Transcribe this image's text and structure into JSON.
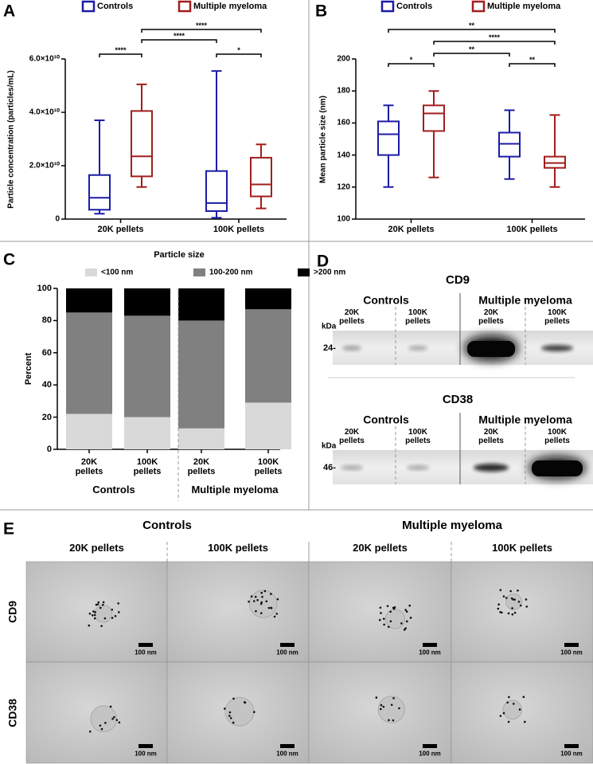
{
  "panel_labels": [
    "A",
    "B",
    "C",
    "D",
    "E"
  ],
  "chart_data": [
    {
      "type": "box",
      "ylabel": "Particle concentration (particles/mL)",
      "categories": [
        "20K pellets",
        "100K pellets"
      ],
      "series": [
        {
          "name": "Controls",
          "color": "#1c1ca6",
          "min": [
            2000000000,
            500000000
          ],
          "q1": [
            3500000000,
            3000000000
          ],
          "median": [
            8000000000,
            6000000000
          ],
          "q3": [
            16500000000,
            18000000000
          ],
          "max": [
            37000000000,
            55500000000
          ]
        },
        {
          "name": "Multiple myeloma",
          "color": "#a31d1d",
          "min": [
            12000000000,
            4000000000
          ],
          "q1": [
            16000000000,
            8500000000
          ],
          "median": [
            23500000000,
            13000000000
          ],
          "q3": [
            40500000000,
            23000000000
          ],
          "max": [
            50500000000,
            28000000000
          ]
        }
      ],
      "ylim": [
        0,
        60000000000
      ],
      "yticks": [
        0,
        {
          "value": 20000000000,
          "label": "2.0×10¹⁰"
        },
        {
          "value": 40000000000,
          "label": "4.0×10¹⁰"
        },
        {
          "value": 60000000000,
          "label": "6.0×10¹⁰"
        }
      ],
      "significance": [
        "****",
        "****",
        "****",
        "*"
      ]
    },
    {
      "type": "box",
      "ylabel": "Mean particle size (nm)",
      "categories": [
        "20K pellets",
        "100K pellets"
      ],
      "series": [
        {
          "name": "Controls",
          "color": "#1c1ca6",
          "min": [
            120,
            125
          ],
          "q1": [
            140,
            139
          ],
          "median": [
            153,
            147
          ],
          "q3": [
            161,
            154
          ],
          "max": [
            171,
            168
          ]
        },
        {
          "name": "Multiple myeloma",
          "color": "#a31d1d",
          "min": [
            126,
            120
          ],
          "q1": [
            155,
            132
          ],
          "median": [
            166,
            135
          ],
          "q3": [
            171,
            139
          ],
          "max": [
            180,
            165
          ]
        }
      ],
      "ylim": [
        100,
        200
      ],
      "yticks": [
        100,
        120,
        140,
        160,
        180,
        200
      ],
      "significance": [
        "**",
        "****",
        "*",
        "**",
        "**"
      ]
    },
    {
      "type": "stacked_bar",
      "legend_title": "Particle size",
      "ylabel": "Percent",
      "categories": [
        "20K pellets",
        "100K pellets",
        "20K pellets",
        "100K pellets"
      ],
      "groups": [
        "Controls",
        "Multiple myeloma"
      ],
      "series": [
        {
          "name": "<100 nm",
          "color": "#d9d9d9",
          "values": [
            22,
            20,
            13,
            29
          ]
        },
        {
          "name": "100-200 nm",
          "color": "#808080",
          "values": [
            63,
            63,
            67,
            58
          ]
        },
        {
          "name": ">200 nm",
          "color": "#000000",
          "values": [
            15,
            17,
            20,
            13
          ]
        }
      ],
      "ylim": [
        0,
        100
      ],
      "yticks": [
        0,
        20,
        40,
        60,
        80,
        100
      ]
    }
  ],
  "blots": [
    {
      "title": "CD9",
      "groups": [
        "Controls",
        "Multiple myeloma"
      ],
      "lanes": [
        "20K pellets",
        "100K pellets",
        "20K pellets",
        "100K pellets"
      ],
      "unit": "kDa",
      "marker": "24-"
    },
    {
      "title": "CD38",
      "groups": [
        "Controls",
        "Multiple myeloma"
      ],
      "lanes": [
        "20K pellets",
        "100K pellets",
        "20K pellets",
        "100K pellets"
      ],
      "unit": "kDa",
      "marker": "46-"
    }
  ],
  "micrographs": {
    "groups": [
      "Controls",
      "Multiple myeloma"
    ],
    "columns": [
      "20K pellets",
      "100K pellets",
      "20K pellets",
      "100K pellets"
    ],
    "rows": [
      "CD9",
      "CD38"
    ],
    "scale_bar": "100 nm"
  }
}
